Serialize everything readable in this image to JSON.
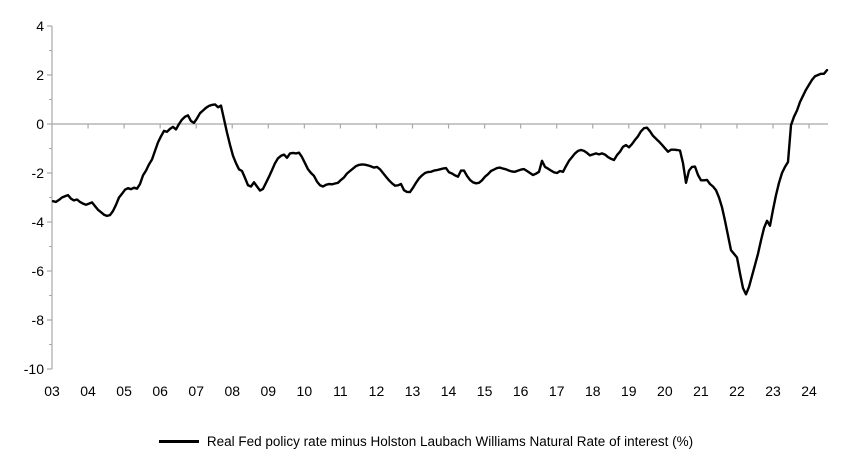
{
  "legend": {
    "label": "Real Fed policy rate minus Holston Laubach Williams Natural Rate of interest (%)",
    "line_color": "#000000",
    "position": "bottom-center"
  },
  "colors": {
    "series": "#000000",
    "axis": "#a8a8a8",
    "text": "#000000",
    "background": "#ffffff"
  },
  "chart_data": {
    "type": "line",
    "title": "",
    "xlabel": "",
    "ylabel": "",
    "ylim": [
      -10,
      4
    ],
    "x_start_year": 2003,
    "x_end": "2024-07",
    "frequency": "monthly",
    "grid": "zero-line-only",
    "legend_position": "bottom-center",
    "x_tick_labels": [
      "03",
      "04",
      "05",
      "06",
      "07",
      "08",
      "09",
      "10",
      "11",
      "12",
      "13",
      "14",
      "15",
      "16",
      "17",
      "18",
      "19",
      "20",
      "21",
      "22",
      "23",
      "24"
    ],
    "y_ticks": [
      4,
      2,
      0,
      -2,
      -4,
      -6,
      -8,
      -10
    ],
    "y_minor_ticks": [
      3,
      1,
      -1,
      -3,
      -5,
      -7,
      -9
    ],
    "series": [
      {
        "name": "Real Fed policy rate minus Holston Laubach Williams Natural Rate of interest (%)",
        "color": "#000000",
        "start_year": 2003,
        "monthly_values_by_year": [
          [
            -3.15,
            -3.18,
            -3.1,
            -3.0,
            -2.95,
            -2.9,
            -3.05,
            -3.12,
            -3.08,
            -3.18,
            -3.25,
            -3.3
          ],
          [
            -3.25,
            -3.2,
            -3.35,
            -3.5,
            -3.6,
            -3.7,
            -3.75,
            -3.72,
            -3.55,
            -3.3,
            -3.0,
            -2.85
          ],
          [
            -2.68,
            -2.62,
            -2.66,
            -2.6,
            -2.64,
            -2.45,
            -2.1,
            -1.9,
            -1.65,
            -1.45,
            -1.1,
            -0.75
          ],
          [
            -0.5,
            -0.28,
            -0.32,
            -0.2,
            -0.12,
            -0.22,
            0.0,
            0.18,
            0.3,
            0.35,
            0.12,
            0.05
          ],
          [
            0.23,
            0.44,
            0.55,
            0.66,
            0.74,
            0.78,
            0.8,
            0.68,
            0.75,
            0.2,
            -0.35,
            -0.85
          ],
          [
            -1.3,
            -1.6,
            -1.85,
            -1.92,
            -2.2,
            -2.5,
            -2.55,
            -2.38,
            -2.55,
            -2.72,
            -2.65,
            -2.4
          ],
          [
            -2.15,
            -1.88,
            -1.6,
            -1.4,
            -1.3,
            -1.25,
            -1.38,
            -1.2,
            -1.18,
            -1.2,
            -1.17,
            -1.35
          ],
          [
            -1.6,
            -1.85,
            -2.0,
            -2.12,
            -2.35,
            -2.5,
            -2.55,
            -2.48,
            -2.45,
            -2.46,
            -2.43,
            -2.4
          ],
          [
            -2.28,
            -2.18,
            -2.02,
            -1.92,
            -1.82,
            -1.72,
            -1.67,
            -1.65,
            -1.66,
            -1.69,
            -1.73,
            -1.78
          ],
          [
            -1.75,
            -1.85,
            -2.0,
            -2.15,
            -2.3,
            -2.42,
            -2.52,
            -2.5,
            -2.45,
            -2.7,
            -2.77,
            -2.78
          ],
          [
            -2.6,
            -2.4,
            -2.22,
            -2.1,
            -2.0,
            -1.96,
            -1.95,
            -1.9,
            -1.88,
            -1.85,
            -1.82,
            -1.8
          ],
          [
            -1.97,
            -2.02,
            -2.1,
            -2.15,
            -1.9,
            -1.9,
            -2.12,
            -2.28,
            -2.38,
            -2.42,
            -2.4,
            -2.3
          ],
          [
            -2.15,
            -2.05,
            -1.92,
            -1.86,
            -1.8,
            -1.78,
            -1.82,
            -1.85,
            -1.9,
            -1.94,
            -1.95,
            -1.9
          ],
          [
            -1.86,
            -1.84,
            -1.92,
            -2.0,
            -2.08,
            -2.03,
            -1.95,
            -1.5,
            -1.75,
            -1.82,
            -1.9,
            -1.97
          ],
          [
            -2.0,
            -1.92,
            -1.95,
            -1.72,
            -1.5,
            -1.35,
            -1.2,
            -1.1,
            -1.06,
            -1.1,
            -1.18,
            -1.28
          ],
          [
            -1.24,
            -1.2,
            -1.24,
            -1.2,
            -1.25,
            -1.35,
            -1.42,
            -1.47,
            -1.27,
            -1.13,
            -0.93,
            -0.86
          ],
          [
            -0.95,
            -0.82,
            -0.65,
            -0.5,
            -0.3,
            -0.17,
            -0.15,
            -0.3,
            -0.48,
            -0.6,
            -0.72,
            -0.85
          ],
          [
            -0.99,
            -1.13,
            -1.05,
            -1.05,
            -1.06,
            -1.08,
            -1.6,
            -2.4,
            -1.9,
            -1.75,
            -1.74,
            -2.08
          ],
          [
            -2.3,
            -2.3,
            -2.28,
            -2.45,
            -2.55,
            -2.7,
            -3.0,
            -3.4,
            -3.95,
            -4.55,
            -5.15,
            -5.3
          ],
          [
            -5.45,
            -6.1,
            -6.7,
            -6.95,
            -6.65,
            -6.2,
            -5.75,
            -5.3,
            -4.75,
            -4.25,
            -3.95,
            -4.15
          ],
          [
            -3.5,
            -2.9,
            -2.4,
            -2.0,
            -1.75,
            -1.55,
            -0.05,
            0.3,
            0.55,
            0.9,
            1.15,
            1.4
          ],
          [
            1.6,
            1.8,
            1.95,
            2.0,
            2.05,
            2.05,
            2.2
          ]
        ]
      }
    ]
  }
}
